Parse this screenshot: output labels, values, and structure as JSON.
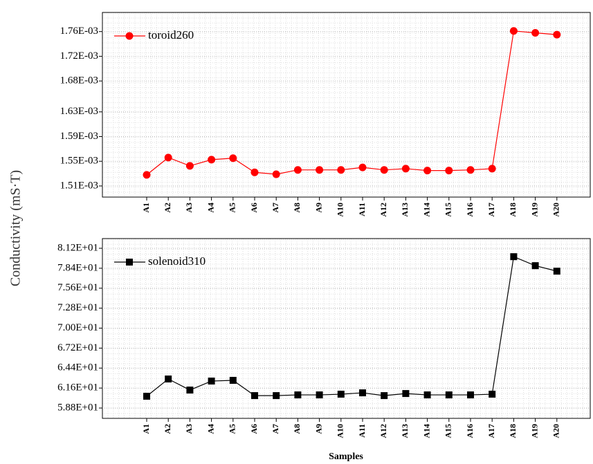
{
  "chart_data": [
    {
      "type": "line",
      "ylabel": "Conductivity (mS·T)",
      "categories": [
        "A1",
        "A2",
        "A3",
        "A4",
        "A5",
        "A6",
        "A7",
        "A8",
        "A9",
        "A10",
        "A11",
        "A12",
        "A13",
        "A14",
        "A15",
        "A16",
        "A17",
        "A18",
        "A19",
        "A20"
      ],
      "series": [
        {
          "name": "toroid260",
          "color": "#ff0000",
          "marker": "circle",
          "values": [
            0.001528,
            0.001556,
            0.0015425,
            0.0015526,
            0.001555,
            0.001532,
            0.001529,
            0.001536,
            0.001536,
            0.001536,
            0.00154,
            0.001536,
            0.001538,
            0.001535,
            0.001535,
            0.001536,
            0.001538,
            0.001761,
            0.001758,
            0.001755
          ]
        }
      ],
      "ylim": [
        0.001492,
        0.001791
      ],
      "yticks": [
        {
          "value": 0.00151,
          "label": "1.51E-03"
        },
        {
          "value": 0.00155,
          "label": "1.55E-03"
        },
        {
          "value": 0.00159,
          "label": "1.59E-03"
        },
        {
          "value": 0.00163,
          "label": "1.63E-03"
        },
        {
          "value": 0.00168,
          "label": "1.68E-03"
        },
        {
          "value": 0.00172,
          "label": "1.72E-03"
        },
        {
          "value": 0.00176,
          "label": "1.76E-03"
        }
      ],
      "grid": true,
      "legend": "upper left"
    },
    {
      "type": "line",
      "xlabel": "Samples",
      "categories": [
        "A1",
        "A2",
        "A3",
        "A4",
        "A5",
        "A6",
        "A7",
        "A8",
        "A9",
        "A10",
        "A11",
        "A12",
        "A13",
        "A14",
        "A15",
        "A16",
        "A17",
        "A18",
        "A19",
        "A20"
      ],
      "series": [
        {
          "name": "solenoid310",
          "color": "#000000",
          "marker": "square",
          "values": [
            60.45,
            62.87,
            61.32,
            62.58,
            62.68,
            60.54,
            60.54,
            60.64,
            60.64,
            60.74,
            60.93,
            60.54,
            60.83,
            60.64,
            60.64,
            60.64,
            60.74,
            80.02,
            78.76,
            77.99
          ]
        }
      ],
      "ylim": [
        57.35,
        82.56
      ],
      "yticks": [
        {
          "value": 58.8,
          "label": "5.88E+01"
        },
        {
          "value": 61.6,
          "label": "6.16E+01"
        },
        {
          "value": 64.4,
          "label": "6.44E+01"
        },
        {
          "value": 67.2,
          "label": "6.72E+01"
        },
        {
          "value": 70.0,
          "label": "7.00E+01"
        },
        {
          "value": 72.8,
          "label": "7.28E+01"
        },
        {
          "value": 75.6,
          "label": "7.56E+01"
        },
        {
          "value": 78.4,
          "label": "7.84E+01"
        },
        {
          "value": 81.2,
          "label": "8.12E+01"
        }
      ],
      "grid": true,
      "legend": "upper left"
    }
  ]
}
